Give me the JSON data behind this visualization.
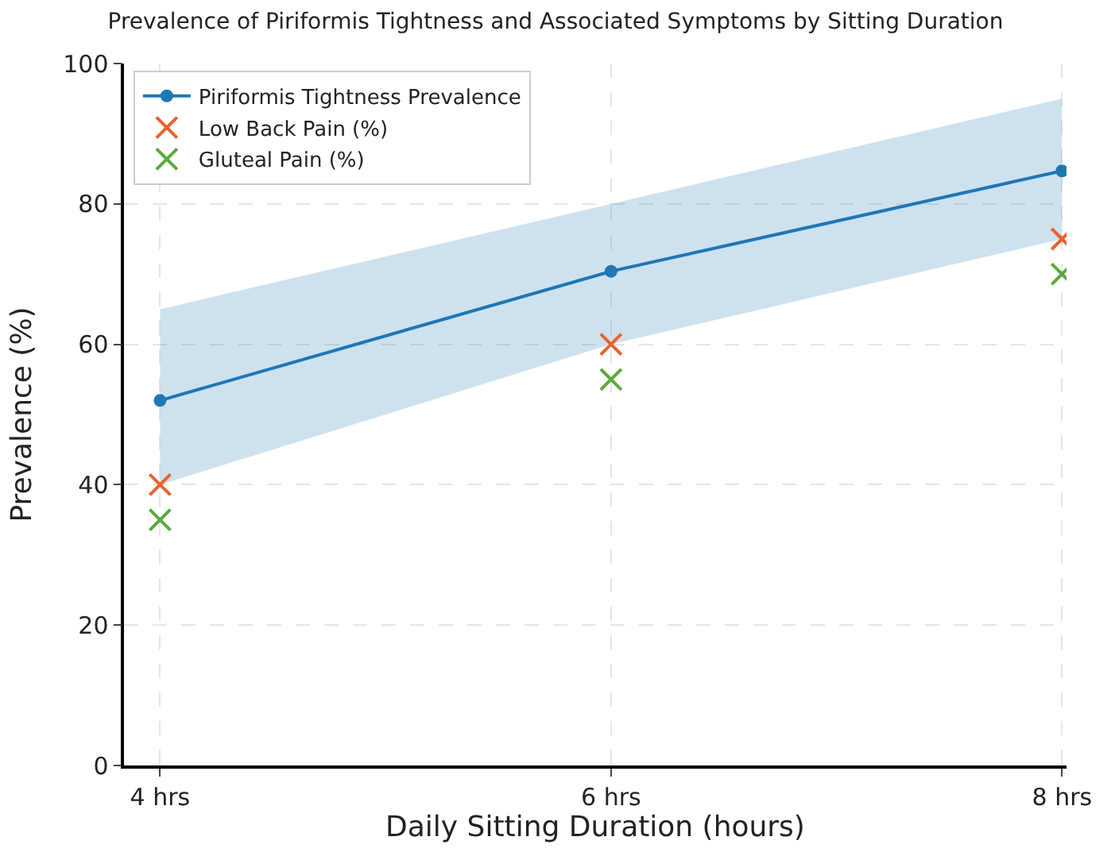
{
  "chart_data": {
    "type": "line",
    "title": "Prevalence of Piriformis Tightness and Associated Symptoms by Sitting Duration",
    "xlabel": "Daily Sitting Duration (hours)",
    "ylabel": "Prevalence (%)",
    "categories": [
      "4 hrs",
      "6 hrs",
      "8 hrs"
    ],
    "series": [
      {
        "name": "Piriformis Tightness Prevalence",
        "color": "#1f77b4",
        "marker": "circle",
        "values": [
          52,
          70.4,
          84.7
        ],
        "lower": [
          40,
          60,
          75
        ],
        "upper": [
          65,
          80,
          95
        ]
      },
      {
        "name": "Low Back Pain (%)",
        "type": "scatter",
        "color": "#e8622c",
        "marker": "cross",
        "values": [
          40,
          60,
          75
        ]
      },
      {
        "name": "Gluteal Pain (%)",
        "type": "scatter",
        "color": "#5ea83f",
        "marker": "cross",
        "values": [
          35,
          55,
          70
        ]
      }
    ],
    "ylim": [
      0,
      100
    ],
    "yticks": [
      0,
      20,
      40,
      60,
      80,
      100
    ],
    "grid": true,
    "legend": "top left"
  }
}
